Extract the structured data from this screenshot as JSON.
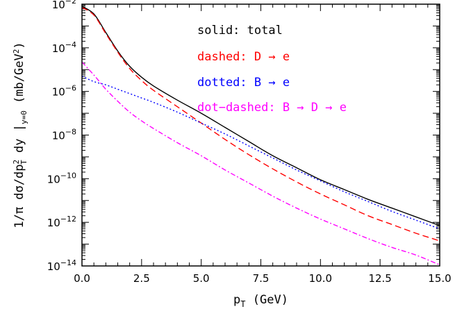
{
  "chart_data": {
    "type": "line",
    "xlabel": "p_T (GeV)",
    "ylabel": "1/π dσ/dp_T^2 dy |_{y=0} (mb/GeV^2)",
    "xlim": [
      0,
      15
    ],
    "ylim_exp": [
      -14,
      -2
    ],
    "yscale": "log",
    "x_ticks": [
      "0.0",
      "2.5",
      "5.0",
      "7.5",
      "10.0",
      "12.5",
      "15.0"
    ],
    "y_ticks": [
      -2,
      -4,
      -6,
      -8,
      -10,
      -12,
      -14
    ],
    "legend": {
      "placement": "top-right",
      "entries": [
        {
          "text": "solid: total",
          "color": "#000000"
        },
        {
          "text": "dashed: D → e",
          "color": "#ff0000"
        },
        {
          "text": "dotted: B → e",
          "color": "#0000ff"
        },
        {
          "text": "dot−dashed: B → D → e",
          "color": "#ff00ff"
        }
      ]
    },
    "series": [
      {
        "style": "solid",
        "color": "#000000",
        "x": [
          0.0,
          0.5,
          1.0,
          1.5,
          2.0,
          2.5,
          3.0,
          4.0,
          5.0,
          6.0,
          7.0,
          8.0,
          9.0,
          10.0,
          11.0,
          12.0,
          13.0,
          14.0,
          15.0
        ],
        "log10_y": [
          -2.1,
          -2.45,
          -3.3,
          -4.15,
          -4.85,
          -5.35,
          -5.75,
          -6.4,
          -7.0,
          -7.65,
          -8.3,
          -8.95,
          -9.5,
          -10.05,
          -10.5,
          -10.95,
          -11.35,
          -11.75,
          -12.15
        ]
      },
      {
        "style": "dashed",
        "color": "#ff0000",
        "x": [
          0.0,
          0.5,
          1.0,
          1.5,
          2.0,
          2.5,
          3.0,
          4.0,
          5.0,
          6.0,
          7.0,
          8.0,
          9.0,
          10.0,
          11.0,
          12.0,
          13.0,
          14.0,
          15.0
        ],
        "log10_y": [
          -2.15,
          -2.5,
          -3.35,
          -4.2,
          -4.95,
          -5.5,
          -5.95,
          -6.7,
          -7.45,
          -8.2,
          -8.9,
          -9.55,
          -10.15,
          -10.7,
          -11.2,
          -11.7,
          -12.1,
          -12.5,
          -12.85
        ]
      },
      {
        "style": "dotted",
        "color": "#0000ff",
        "x": [
          0.0,
          0.5,
          1.0,
          1.5,
          2.0,
          2.5,
          3.0,
          4.0,
          5.0,
          6.0,
          7.0,
          8.0,
          9.0,
          10.0,
          11.0,
          12.0,
          13.0,
          14.0,
          15.0
        ],
        "log10_y": [
          -5.3,
          -5.55,
          -5.7,
          -5.9,
          -6.1,
          -6.3,
          -6.5,
          -6.95,
          -7.45,
          -7.95,
          -8.5,
          -9.05,
          -9.6,
          -10.1,
          -10.6,
          -11.05,
          -11.5,
          -11.9,
          -12.3
        ]
      },
      {
        "style": "dot-dashed",
        "color": "#ff00ff",
        "x": [
          0.0,
          0.5,
          1.0,
          1.5,
          2.0,
          2.5,
          3.0,
          4.0,
          5.0,
          6.0,
          7.0,
          8.0,
          9.0,
          10.0,
          11.0,
          12.0,
          13.0,
          14.0,
          15.0
        ],
        "log10_y": [
          -4.65,
          -5.25,
          -5.9,
          -6.45,
          -6.95,
          -7.35,
          -7.7,
          -8.35,
          -8.95,
          -9.6,
          -10.2,
          -10.8,
          -11.35,
          -11.85,
          -12.3,
          -12.75,
          -13.15,
          -13.5,
          -13.95
        ]
      }
    ]
  }
}
